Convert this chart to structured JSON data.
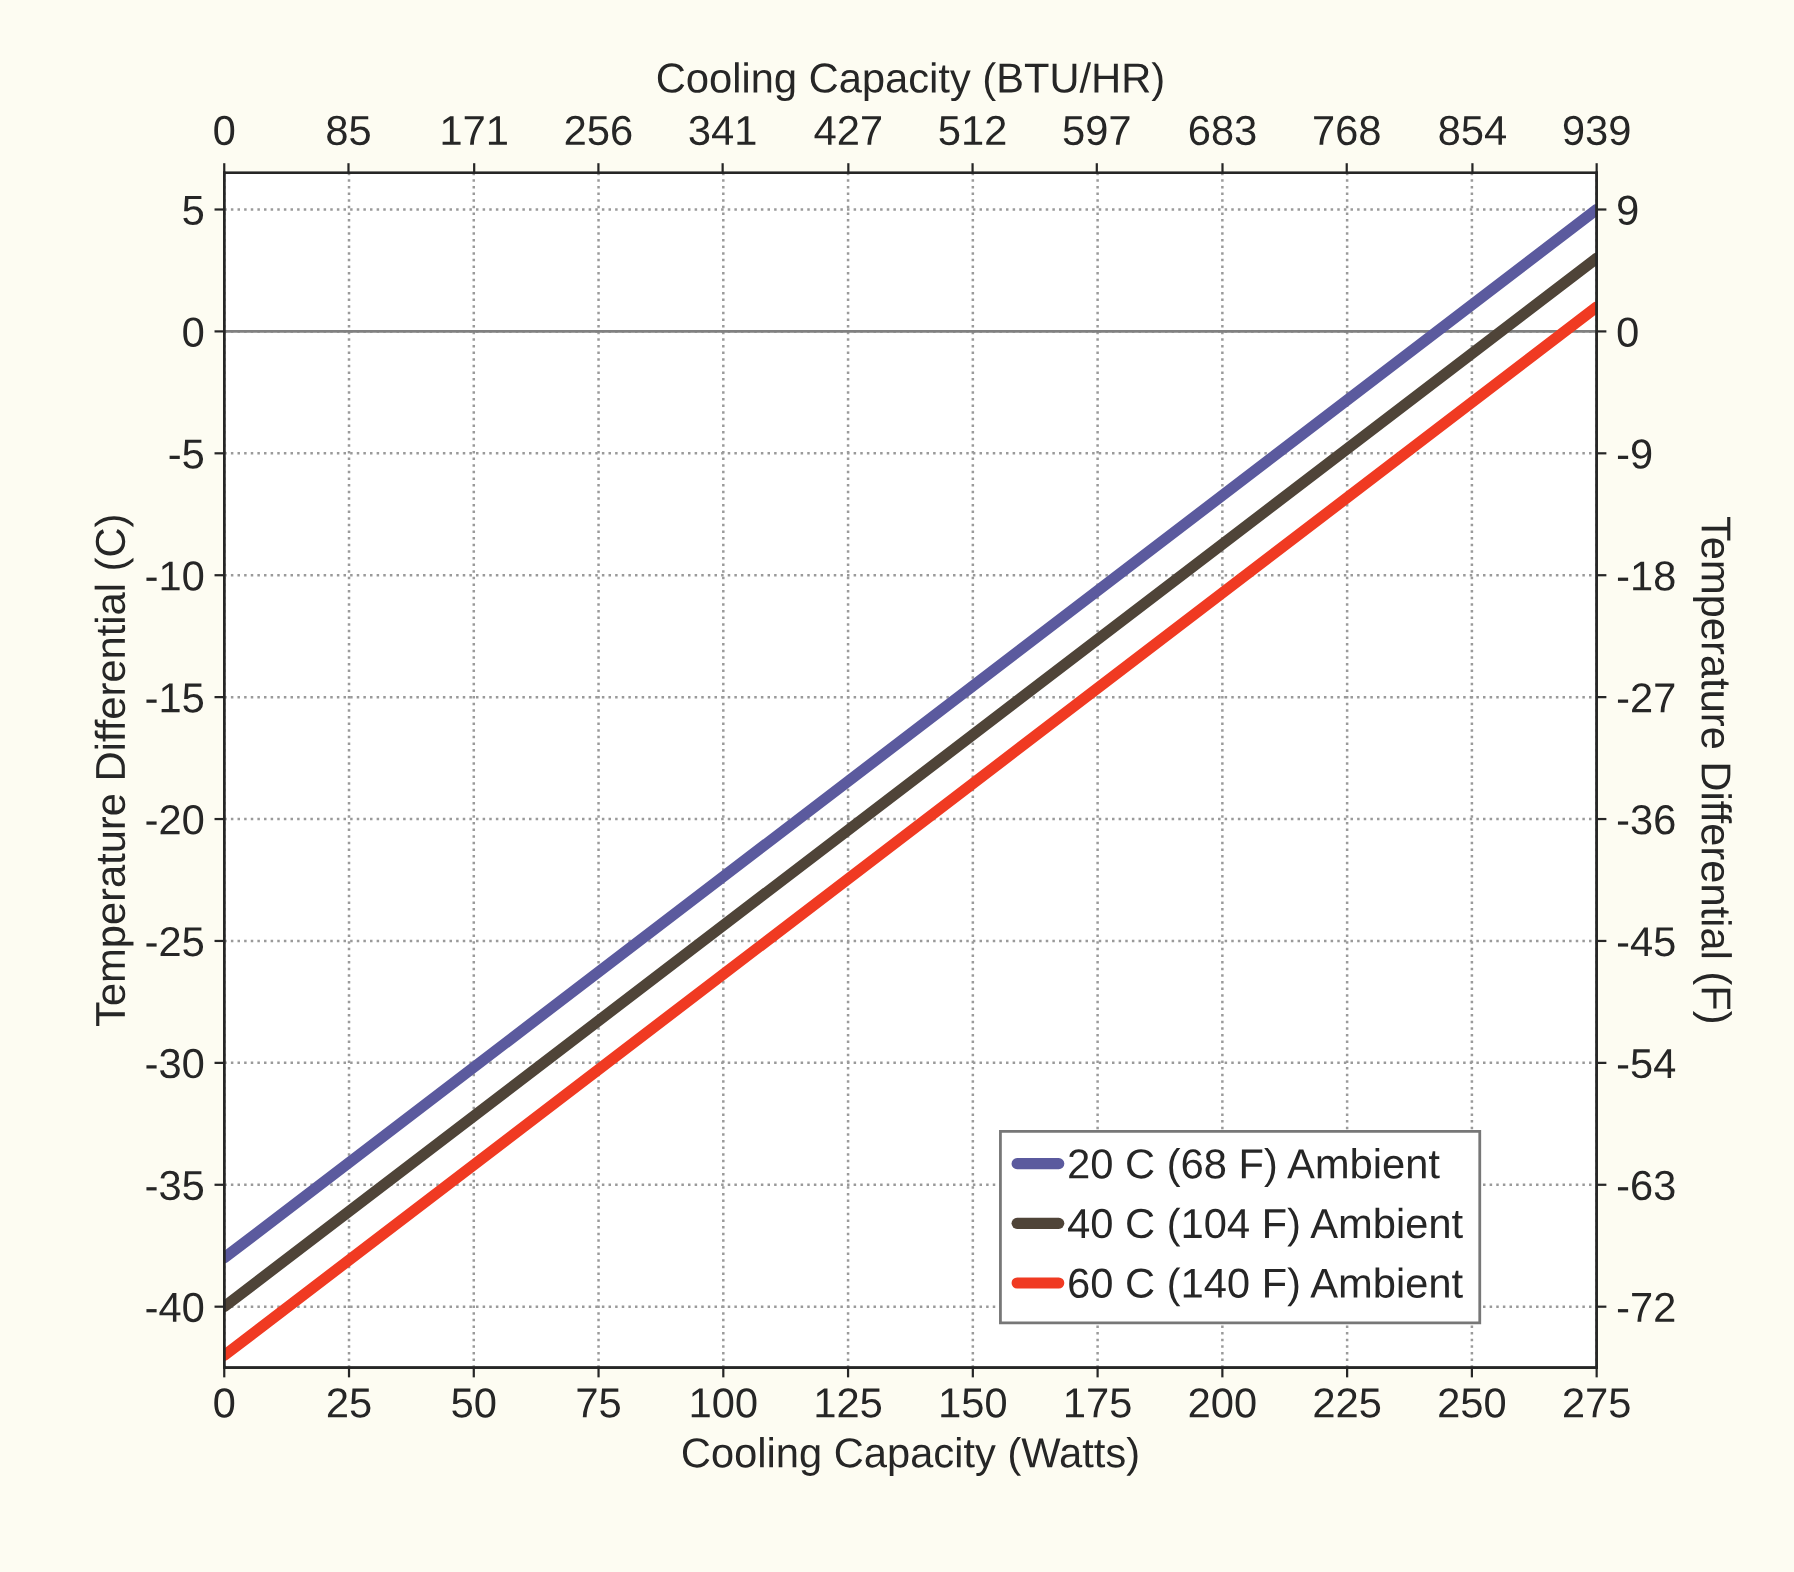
{
  "chart_data": {
    "type": "line",
    "xlabel": "Cooling Capacity (Watts)",
    "ylabel": "Temperature Differential (C)",
    "y2label": "Temperature Differential (F)",
    "x2label": "Cooling Capacity (BTU/HR)",
    "x": [
      0,
      275
    ],
    "series": [
      {
        "name": "20 C (68 F) Ambient",
        "color": "#5b5a9e",
        "values": [
          -38,
          5
        ]
      },
      {
        "name": "40 C (104 F) Ambient",
        "color": "#4f4438",
        "values": [
          -40,
          3
        ]
      },
      {
        "name": "60 C (140 F) Ambient",
        "color": "#f03a22",
        "values": [
          -42,
          1
        ]
      }
    ],
    "xlim": [
      0,
      275
    ],
    "xticks": [
      0,
      25,
      50,
      75,
      100,
      125,
      150,
      175,
      200,
      225,
      250,
      275
    ],
    "ylim": [
      -42.5,
      6.5
    ],
    "yticks": [
      -40,
      -35,
      -30,
      -25,
      -20,
      -15,
      -10,
      -5,
      0,
      5
    ],
    "y2lim": [
      -76.5,
      11.7
    ],
    "y2ticks": [
      -72,
      -63,
      -54,
      -45,
      -36,
      -27,
      -18,
      -9,
      0,
      9
    ],
    "x2lim": [
      0,
      939
    ],
    "x2ticks": [
      0,
      85,
      171,
      256,
      341,
      427,
      512,
      597,
      683,
      768,
      854,
      939
    ],
    "ref_lines": [
      {
        "axis": "y",
        "value": 0,
        "color": "#808080"
      }
    ],
    "grid": true,
    "legend": "lower right",
    "line_style": "solid",
    "marker": "none"
  }
}
